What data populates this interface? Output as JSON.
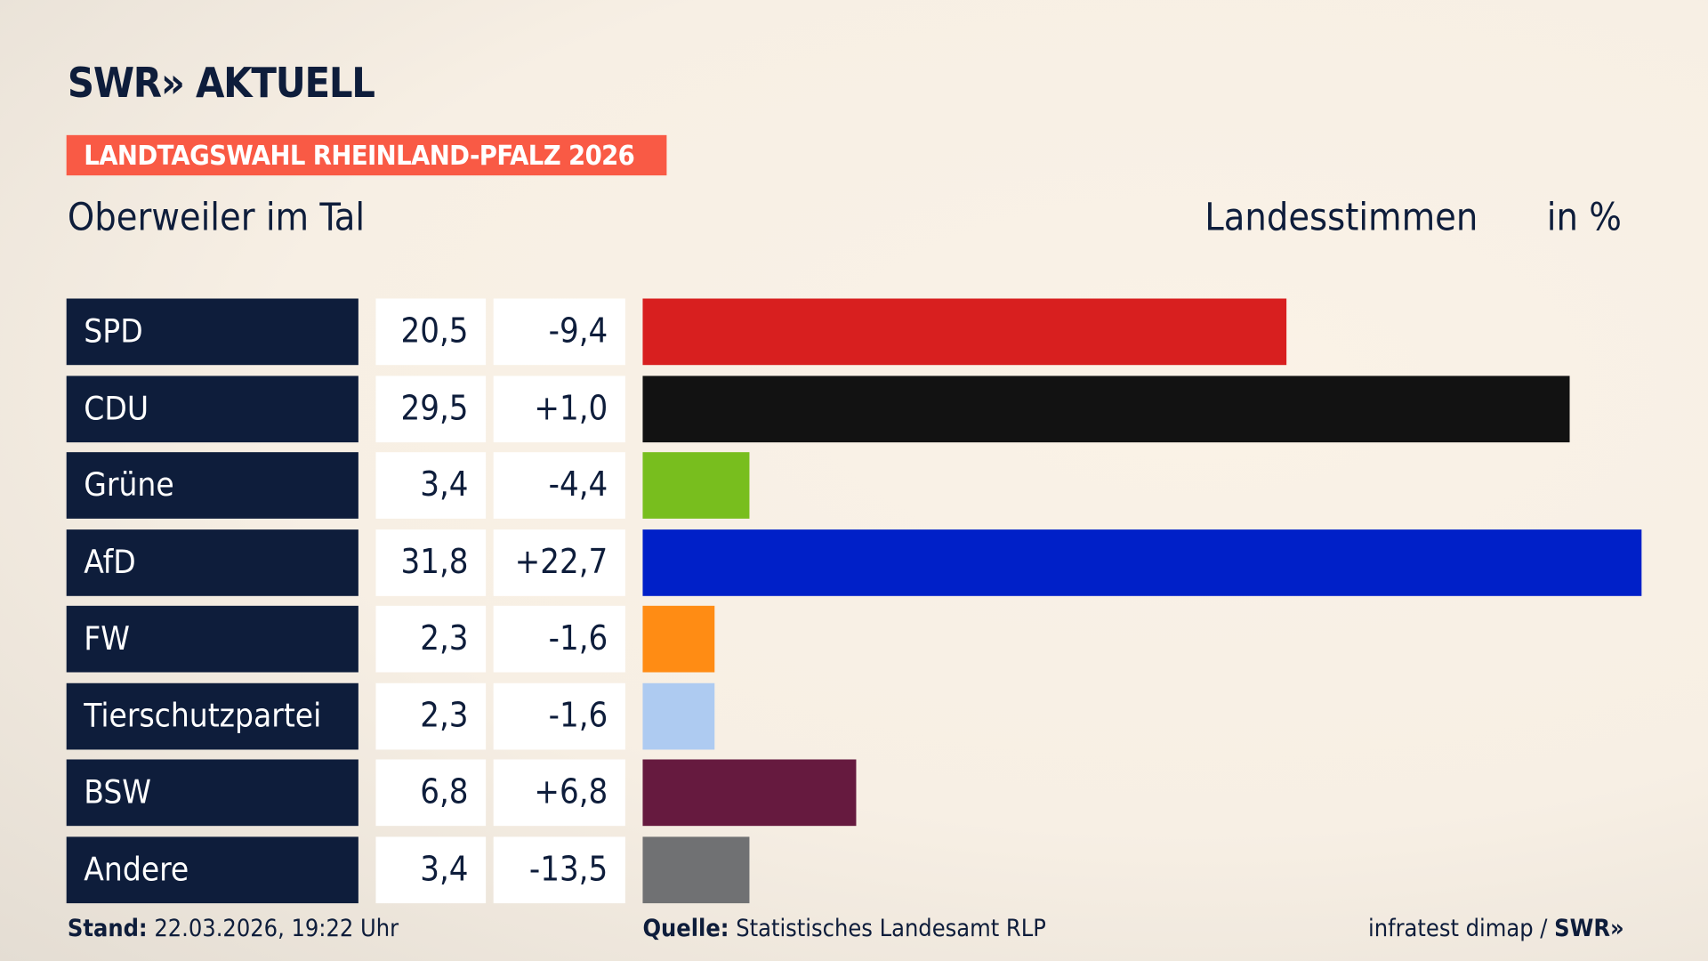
{
  "header": {
    "logo": "SWR» AKTUELL",
    "badge": "LANDTAGSWAHL RHEINLAND-PFALZ 2026",
    "region": "Oberweiler im Tal",
    "vote_type": "Landesstimmen",
    "unit": "in %"
  },
  "chart_data": {
    "type": "bar",
    "orientation": "horizontal",
    "xlim": [
      0,
      31.8
    ],
    "categories": [
      "SPD",
      "CDU",
      "Grüne",
      "AfD",
      "FW",
      "Tierschutzpartei",
      "BSW",
      "Andere"
    ],
    "values": [
      "20,5",
      "29,5",
      "3,4",
      "31,8",
      "2,3",
      "2,3",
      "6,8",
      "3,4"
    ],
    "numeric_values": [
      20.5,
      29.5,
      3.4,
      31.8,
      2.3,
      2.3,
      6.8,
      3.4
    ],
    "diffs": [
      "-9,4",
      "+1,0",
      "-4,4",
      "+22,7",
      "-1,6",
      "-1,6",
      "+6,8",
      "-13,5"
    ],
    "colors": [
      "#d81f1f",
      "#121212",
      "#78be1e",
      "#0020c8",
      "#ff8c14",
      "#aecbf1",
      "#661a3f",
      "#707173"
    ]
  },
  "footer": {
    "stand_label": "Stand:",
    "stand_value": "22.03.2026, 19:22 Uhr",
    "source_label": "Quelle:",
    "source_value": "Statistisches Landesamt RLP",
    "credit": "infratest dimap / ",
    "credit_brand": "SWR»"
  }
}
